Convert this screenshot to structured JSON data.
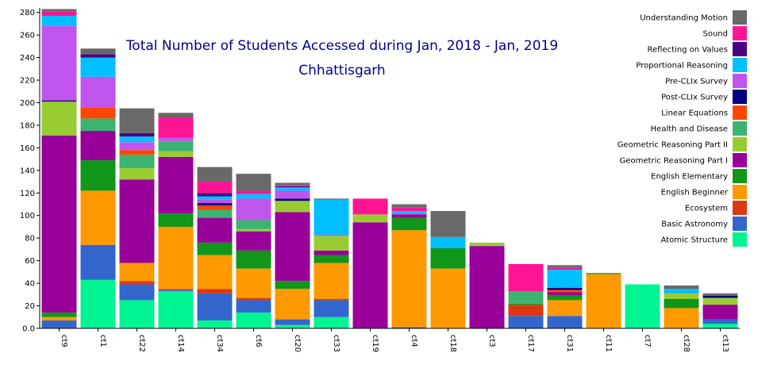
{
  "chart_data": {
    "type": "bar",
    "stacked": true,
    "title": "Total Number of Students Accessed during Jan, 2018 - Jan, 2019",
    "subtitle": "Chhattisgarh",
    "ylim": [
      0,
      284
    ],
    "y_ticks": [
      0.0,
      20,
      40,
      60,
      80,
      100,
      120,
      140,
      160,
      180,
      200,
      220,
      240,
      260,
      280
    ],
    "legend_position": "top-right",
    "categories": [
      "ct9",
      "ct1",
      "ct22",
      "ct14",
      "ct34",
      "ct6",
      "ct20",
      "ct33",
      "ct19",
      "ct4",
      "ct18",
      "ct3",
      "ct17",
      "ct31",
      "ct11",
      "ct7",
      "ct28",
      "ct13"
    ],
    "series": [
      {
        "name": "Atomic Structure",
        "color": "#00f592",
        "values": [
          0,
          43,
          25,
          33,
          7,
          14,
          3,
          10,
          0,
          0,
          0,
          0,
          0,
          0,
          0,
          39,
          0,
          4
        ]
      },
      {
        "name": "Basic Astronomy",
        "color": "#3366cc",
        "values": [
          7,
          31,
          14,
          1,
          24,
          11,
          5,
          15,
          0,
          1,
          0,
          0,
          11,
          11,
          0,
          0,
          0,
          4
        ]
      },
      {
        "name": "Ecosystem",
        "color": "#dc3912",
        "values": [
          0,
          0,
          3,
          1,
          4,
          2,
          0,
          1,
          0,
          0,
          0,
          0,
          10,
          0,
          0,
          0,
          0,
          0
        ]
      },
      {
        "name": "English Beginner",
        "color": "#ff9900",
        "values": [
          3,
          48,
          16,
          55,
          30,
          26,
          27,
          32,
          0,
          86,
          53,
          0,
          0,
          14,
          48,
          0,
          18,
          0
        ]
      },
      {
        "name": "English Elementary",
        "color": "#109618",
        "values": [
          4,
          27,
          0,
          12,
          11,
          16,
          7,
          7,
          0,
          11,
          18,
          0,
          1,
          4,
          1,
          0,
          8,
          0
        ]
      },
      {
        "name": "Geometric Reasoning Part I",
        "color": "#990099",
        "values": [
          157,
          26,
          74,
          50,
          22,
          17,
          61,
          4,
          94,
          3,
          0,
          73,
          0,
          3,
          0,
          0,
          0,
          13
        ]
      },
      {
        "name": "Geometric Reasoning Part II",
        "color": "#99cc33",
        "values": [
          30,
          0,
          10,
          5,
          0,
          2,
          10,
          13,
          7,
          0,
          0,
          3,
          0,
          0,
          0,
          0,
          5,
          6
        ]
      },
      {
        "name": "Health and Disease",
        "color": "#3cb371",
        "values": [
          0,
          11,
          12,
          9,
          7,
          8,
          0,
          0,
          0,
          0,
          0,
          0,
          11,
          0,
          0,
          0,
          0,
          0
        ]
      },
      {
        "name": "Linear Equations",
        "color": "#ff4500",
        "values": [
          0,
          10,
          4,
          0,
          4,
          0,
          0,
          0,
          0,
          0,
          0,
          0,
          0,
          2,
          0,
          0,
          0,
          0
        ]
      },
      {
        "name": "Post-CLIx Survey",
        "color": "#000080",
        "values": [
          1,
          0,
          0,
          0,
          2,
          0,
          2,
          0,
          0,
          0,
          0,
          0,
          0,
          2,
          0,
          0,
          0,
          2
        ]
      },
      {
        "name": "Pre-CLIx Survey",
        "color": "#bf55ec",
        "values": [
          66,
          27,
          7,
          3,
          3,
          19,
          7,
          1,
          0,
          1,
          0,
          0,
          0,
          0,
          0,
          0,
          0,
          0
        ]
      },
      {
        "name": "Proportional Reasoning",
        "color": "#00bfff",
        "values": [
          9,
          17,
          5,
          0,
          3,
          4,
          3,
          31,
          0,
          2,
          10,
          0,
          0,
          16,
          0,
          0,
          4,
          0
        ]
      },
      {
        "name": "Reflecting on Values",
        "color": "#4b0082",
        "values": [
          0,
          3,
          3,
          0,
          3,
          0,
          1,
          0,
          0,
          0,
          0,
          0,
          0,
          0,
          0,
          0,
          0,
          0
        ]
      },
      {
        "name": "Sound",
        "color": "#ff1493",
        "values": [
          4,
          0,
          0,
          18,
          10,
          3,
          1,
          0,
          14,
          3,
          0,
          0,
          24,
          2,
          0,
          0,
          0,
          0
        ]
      },
      {
        "name": "Understanding Motion",
        "color": "#696969",
        "values": [
          2,
          5,
          22,
          4,
          13,
          15,
          2,
          1,
          0,
          3,
          23,
          0,
          0,
          2,
          0,
          0,
          3,
          2
        ]
      }
    ]
  }
}
